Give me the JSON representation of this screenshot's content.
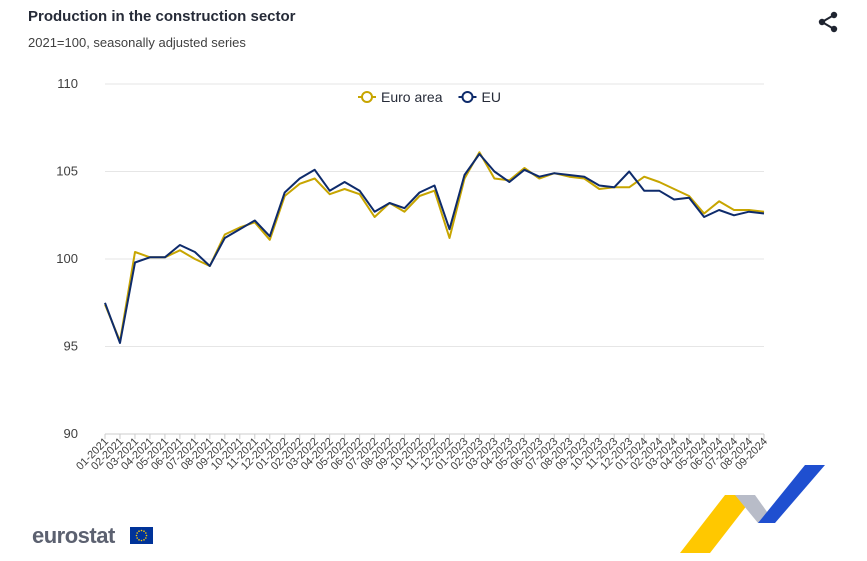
{
  "colors": {
    "euro_area": "#c7a500",
    "eu": "#0e2b6b",
    "grid": "#e6e6e6",
    "text": "#262b38"
  },
  "icons": {
    "share": "share-icon",
    "flag": "eu-flag-icon"
  },
  "branding": {
    "logo_text": "eurostat"
  },
  "chart_data": {
    "type": "line",
    "title": "Production in the construction sector",
    "subtitle": "2021=100, seasonally adjusted series",
    "xlabel": "",
    "ylabel": "",
    "ylim": [
      90,
      110
    ],
    "yticks": [
      90,
      95,
      100,
      105,
      110
    ],
    "grid": true,
    "legend_position": "top-center",
    "x": [
      "01-2021",
      "02-2021",
      "03-2021",
      "04-2021",
      "05-2021",
      "06-2021",
      "07-2021",
      "08-2021",
      "09-2021",
      "10-2021",
      "11-2021",
      "12-2021",
      "01-2022",
      "02-2022",
      "03-2022",
      "04-2022",
      "05-2022",
      "06-2022",
      "07-2022",
      "08-2022",
      "09-2022",
      "10-2022",
      "11-2022",
      "12-2022",
      "01-2023",
      "02-2023",
      "03-2023",
      "04-2023",
      "05-2023",
      "06-2023",
      "07-2023",
      "08-2023",
      "09-2023",
      "10-2023",
      "11-2023",
      "12-2023",
      "01-2024",
      "02-2024",
      "03-2024",
      "04-2024",
      "05-2024",
      "06-2024",
      "07-2024",
      "08-2024",
      "09-2024"
    ],
    "series": [
      {
        "name": "Euro area",
        "color": "#c7a500",
        "values": [
          97.4,
          95.3,
          100.4,
          100.1,
          100.1,
          100.5,
          100.0,
          99.6,
          101.4,
          101.8,
          102.1,
          101.1,
          103.6,
          104.3,
          104.6,
          103.7,
          104.0,
          103.7,
          102.4,
          103.2,
          102.7,
          103.6,
          103.9,
          101.2,
          104.6,
          106.1,
          104.6,
          104.5,
          105.2,
          104.6,
          104.9,
          104.7,
          104.6,
          104.0,
          104.1,
          104.1,
          104.7,
          104.4,
          104.0,
          103.6,
          102.6,
          103.3,
          102.8,
          102.8,
          102.7
        ]
      },
      {
        "name": "EU",
        "color": "#0e2b6b",
        "values": [
          97.5,
          95.2,
          99.8,
          100.1,
          100.1,
          100.8,
          100.4,
          99.6,
          101.2,
          101.7,
          102.2,
          101.3,
          103.8,
          104.6,
          105.1,
          103.9,
          104.4,
          103.9,
          102.7,
          103.2,
          102.9,
          103.8,
          104.2,
          101.7,
          104.8,
          106.0,
          105.0,
          104.4,
          105.1,
          104.7,
          104.9,
          104.8,
          104.7,
          104.2,
          104.1,
          105.0,
          103.9,
          103.9,
          103.4,
          103.5,
          102.4,
          102.8,
          102.5,
          102.7,
          102.6
        ]
      }
    ]
  }
}
